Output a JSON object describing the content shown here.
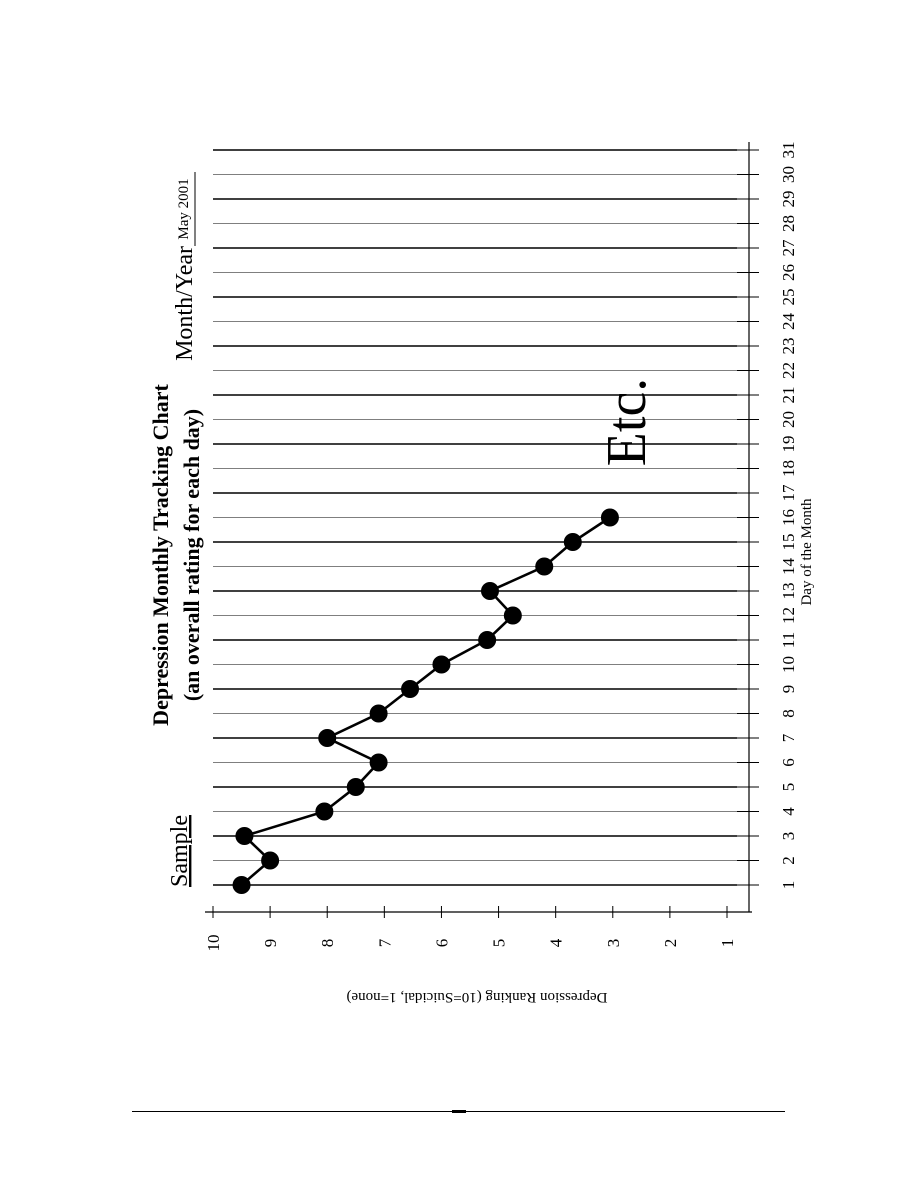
{
  "chart_data": {
    "type": "line",
    "title": "Depression Monthly Tracking Chart",
    "subtitle": "(an overall rating for each day)",
    "xlabel": "Day of the Month",
    "ylabel": "Depression Ranking (10=Suicidal, 1=none)",
    "xlim": [
      1,
      31
    ],
    "ylim": [
      1,
      10
    ],
    "x_ticks": [
      "1",
      "2",
      "3",
      "4",
      "5",
      "6",
      "7",
      "8",
      "9",
      "10",
      "11",
      "12",
      "13",
      "14",
      "15",
      "16",
      "17",
      "18",
      "19",
      "20",
      "21",
      "22",
      "23",
      "24",
      "25",
      "26",
      "27",
      "28",
      "29",
      "30",
      "31"
    ],
    "y_ticks": [
      "10",
      "9",
      "8",
      "7",
      "6",
      "5",
      "4",
      "3",
      "2",
      "1"
    ],
    "grid": true,
    "series": [
      {
        "x": [
          1,
          2,
          3,
          4,
          5,
          6,
          7,
          8,
          9,
          10,
          11,
          12,
          13,
          14,
          15,
          16
        ],
        "y": [
          9.5,
          9.0,
          9.45,
          8.05,
          7.5,
          7.1,
          8.0,
          7.1,
          6.55,
          6.0,
          5.2,
          4.75,
          5.15,
          4.2,
          3.7,
          3.05
        ]
      }
    ],
    "annotations": {
      "sample": "Sample",
      "etc": "Etc.",
      "month_year_label": "Month/Year",
      "month_year_value": "May 2001"
    }
  }
}
